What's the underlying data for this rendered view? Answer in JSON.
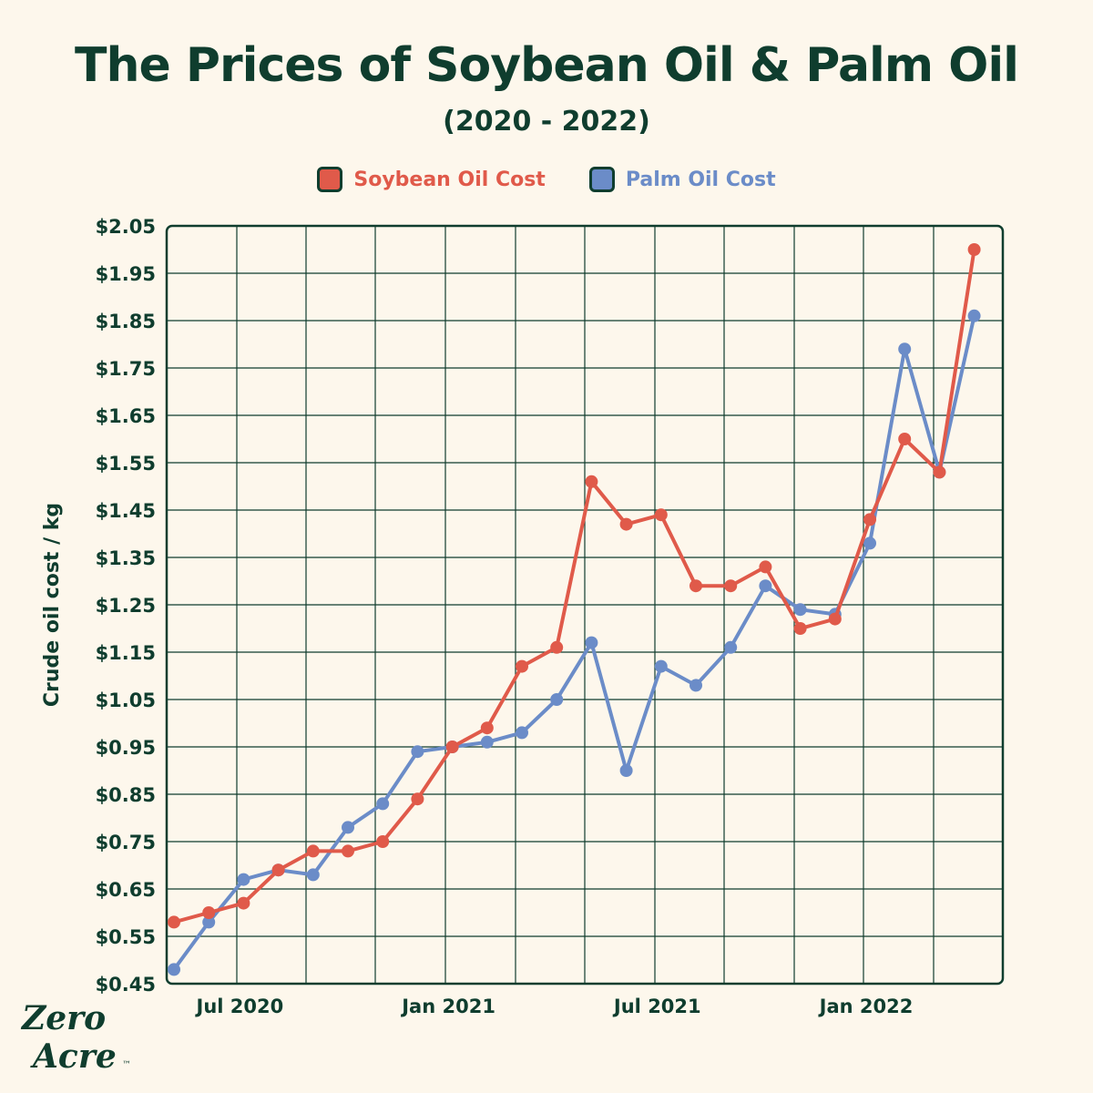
{
  "logo": {
    "line1": "Zero",
    "line2": "Acre",
    "tm": "™"
  },
  "colors": {
    "soy": "#e05a4a",
    "palm": "#6b8cc8",
    "ink": "#0f3d2e",
    "bg": "#fdf7ec"
  },
  "chart_data": {
    "type": "line",
    "title": "The Prices of Soybean Oil & Palm Oil",
    "subtitle": "(2020 - 2022)",
    "ylabel": "Crude oil cost / kg",
    "xlabel": "",
    "ylim": [
      0.45,
      2.05
    ],
    "yticks": [
      "$2.05",
      "$1.95",
      "$1.85",
      "$1.75",
      "$1.65",
      "$1.55",
      "$1.45",
      "$1.35",
      "$1.25",
      "$1.15",
      "$1.05",
      "$0.95",
      "$0.85",
      "$0.75",
      "$0.65",
      "$0.55",
      "$0.45"
    ],
    "xticks": [
      {
        "label": "Jul 2020",
        "month": 2
      },
      {
        "label": "Jan 2021",
        "month": 8
      },
      {
        "label": "Jul 2021",
        "month": 14
      },
      {
        "label": "Jan 2022",
        "month": 20
      }
    ],
    "grid": true,
    "legend_position": "top-center",
    "series": [
      {
        "name": "Soybean Oil Cost",
        "values": [
          0.58,
          0.6,
          0.62,
          0.69,
          0.73,
          0.73,
          0.75,
          0.84,
          0.95,
          0.99,
          1.12,
          1.16,
          1.51,
          1.42,
          1.44,
          1.29,
          1.29,
          1.33,
          1.2,
          1.22,
          1.43,
          1.6,
          1.53,
          2.0
        ]
      },
      {
        "name": "Palm Oil Cost",
        "values": [
          0.48,
          0.58,
          0.67,
          0.69,
          0.68,
          0.78,
          0.83,
          0.94,
          0.95,
          0.96,
          0.98,
          1.05,
          1.17,
          0.9,
          1.12,
          1.08,
          1.16,
          1.29,
          1.24,
          1.23,
          1.38,
          1.79,
          1.53,
          1.86
        ]
      }
    ]
  }
}
